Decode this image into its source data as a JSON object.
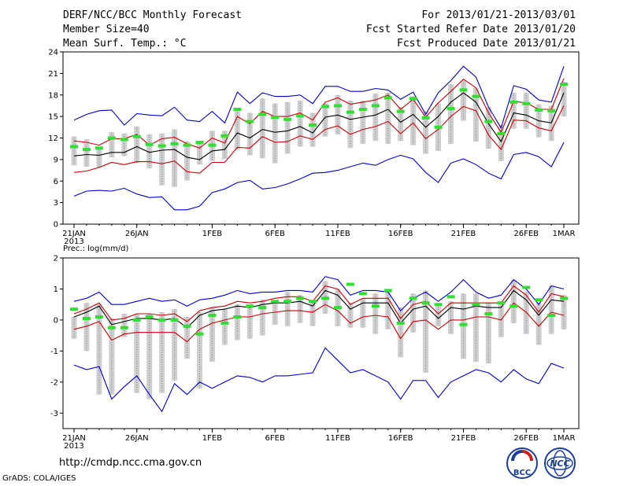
{
  "header": {
    "title": "DERF/NCC/BCC Monthly Forecast",
    "member_size": "Member Size=40",
    "variable": "Mean Surf. Temp.: °C",
    "period": "For 2013/01/21-2013/03/01",
    "started": "Fcst Started Refer Date 2013/01/20",
    "produced": "Fcst Produced Date 2013/01/21"
  },
  "footer": {
    "url": "http://cmdp.ncc.cma.gov.cn",
    "grads": "GrADS: COLA/IGES",
    "logo_left_text": "BCC",
    "logo_right_text": "NCC"
  },
  "colors": {
    "max_min": "#0000cc",
    "spread": "#cc0000",
    "mean": "#000000",
    "obs": "#33dd33",
    "box": "#cfcfd2",
    "whisker": "#808080"
  },
  "chart_data": [
    {
      "type": "line",
      "title": "Mean Surf. Temp.: °C",
      "x_labels": [
        "21JAN",
        "26JAN",
        "1FEB",
        "6FEB",
        "11FEB",
        "16FEB",
        "21FEB",
        "26FEB",
        "1MAR"
      ],
      "x_label_days": [
        0,
        5,
        11,
        16,
        21,
        26,
        31,
        36,
        39
      ],
      "year_label": "2013",
      "ylim": [
        0,
        24
      ],
      "y_ticks": [
        0,
        3,
        6,
        9,
        12,
        15,
        18,
        21,
        24
      ],
      "series": [
        {
          "name": "max",
          "values": [
            14.5,
            15.3,
            15.8,
            15.9,
            13.8,
            15.4,
            15.2,
            15.1,
            16.3,
            14.5,
            14.3,
            15.7,
            14.1,
            18.4,
            16.8,
            18.3,
            17.8,
            17.8,
            18.0,
            16.8,
            19.2,
            19.2,
            18.5,
            18.5,
            18.9,
            18.7,
            17.4,
            18.4,
            15.3,
            18.3,
            20.0,
            22.0,
            20.5,
            16.3,
            13.4,
            19.3,
            18.8,
            17.3,
            17.0,
            22.0
          ]
        },
        {
          "name": "upper",
          "values": [
            11.6,
            11.4,
            11.0,
            11.9,
            11.9,
            12.5,
            11.0,
            11.9,
            12.1,
            11.2,
            10.6,
            12.0,
            11.3,
            15.0,
            14.0,
            15.7,
            15.0,
            15.0,
            15.5,
            14.5,
            17.0,
            17.6,
            16.7,
            17.0,
            17.3,
            18.0,
            16.0,
            17.4,
            14.9,
            16.9,
            18.5,
            20.2,
            19.0,
            15.5,
            12.8,
            17.1,
            16.9,
            16.0,
            16.0,
            20.3
          ]
        },
        {
          "name": "mean",
          "values": [
            9.5,
            9.7,
            9.6,
            10.0,
            10.0,
            10.8,
            10.0,
            10.3,
            10.4,
            9.3,
            9.0,
            10.2,
            10.4,
            12.7,
            12.0,
            13.2,
            12.8,
            13.0,
            13.6,
            12.7,
            14.9,
            15.2,
            14.6,
            14.9,
            15.2,
            16.0,
            14.2,
            15.3,
            13.5,
            15.0,
            17.0,
            18.3,
            17.0,
            14.0,
            11.5,
            15.5,
            15.2,
            14.4,
            14.1,
            18.3
          ]
        },
        {
          "name": "lower",
          "values": [
            7.2,
            7.4,
            7.9,
            8.6,
            8.3,
            8.7,
            8.7,
            8.4,
            8.8,
            7.3,
            7.1,
            8.6,
            8.6,
            10.7,
            10.6,
            12.2,
            11.4,
            11.5,
            12.3,
            11.8,
            13.2,
            13.7,
            12.5,
            13.2,
            13.6,
            14.3,
            12.6,
            14.1,
            11.9,
            13.2,
            15.0,
            16.4,
            15.8,
            12.4,
            10.4,
            14.5,
            14.4,
            13.4,
            13.0,
            16.5
          ]
        },
        {
          "name": "min",
          "values": [
            3.9,
            4.6,
            4.7,
            4.6,
            5.0,
            4.2,
            3.7,
            3.8,
            2.0,
            2.0,
            2.5,
            4.4,
            4.9,
            5.8,
            6.1,
            4.9,
            5.1,
            5.6,
            6.3,
            7.1,
            7.2,
            7.5,
            8.0,
            8.5,
            8.2,
            9.0,
            9.6,
            9.1,
            7.2,
            5.8,
            8.5,
            9.1,
            8.3,
            7.1,
            6.3,
            9.7,
            10.0,
            9.4,
            8.0,
            11.4
          ]
        },
        {
          "name": "obs",
          "values": [
            10.8,
            10.4,
            10.6,
            12.0,
            11.8,
            12.2,
            11.1,
            10.9,
            11.2,
            11.0,
            11.4,
            11.0,
            12.3,
            16.0,
            14.3,
            15.3,
            14.9,
            14.6,
            15.1,
            13.8,
            16.4,
            16.5,
            15.6,
            16.0,
            16.5,
            17.6,
            15.7,
            17.5,
            14.8,
            13.5,
            16.1,
            18.7,
            17.8,
            14.3,
            12.6,
            17.0,
            16.8,
            15.9,
            15.8,
            19.5
          ]
        },
        {
          "name": "box_hi",
          "values": [
            12.2,
            11.8,
            10.7,
            12.8,
            12.6,
            13.6,
            12.5,
            12.6,
            13.2,
            11.5,
            11.5,
            13.0,
            13.0,
            15.9,
            15.5,
            17.5,
            16.8,
            17.0,
            17.2,
            15.5,
            16.8,
            18.0,
            17.2,
            17.2,
            18.2,
            18.3,
            16.3,
            17.8,
            15.7,
            16.8,
            19.5,
            20.0,
            19.0,
            16.3,
            13.8,
            18.3,
            18.3,
            16.7,
            16.5,
            19.8
          ]
        },
        {
          "name": "box_lo",
          "values": [
            8.2,
            8.0,
            7.9,
            9.3,
            9.5,
            8.5,
            7.8,
            5.4,
            5.2,
            6.1,
            8.3,
            8.8,
            9.1,
            10.4,
            9.6,
            9.2,
            8.5,
            9.8,
            10.8,
            10.8,
            12.2,
            12.5,
            10.6,
            11.2,
            11.6,
            11.2,
            11.6,
            11.0,
            9.8,
            10.2,
            11.2,
            14.4,
            11.5,
            10.5,
            8.8,
            13.3,
            13.3,
            12.1,
            11.6,
            15.0
          ]
        }
      ]
    },
    {
      "type": "line",
      "title": "Prec.: log(mm/d)",
      "x_labels": [
        "21JAN",
        "26JAN",
        "1FEB",
        "6FEB",
        "11FEB",
        "16FEB",
        "21FEB",
        "26FEB",
        "1MAR"
      ],
      "x_label_days": [
        0,
        5,
        11,
        16,
        21,
        26,
        31,
        36,
        39
      ],
      "year_label": "2013",
      "ylim": [
        -3.5,
        2
      ],
      "y_ticks": [
        -3,
        -2,
        -1,
        0,
        1,
        2
      ],
      "series": [
        {
          "name": "max",
          "values": [
            0.6,
            0.7,
            0.9,
            0.5,
            0.5,
            0.6,
            0.7,
            0.6,
            0.65,
            0.45,
            0.65,
            0.7,
            0.8,
            0.95,
            0.85,
            0.9,
            0.9,
            0.95,
            0.95,
            0.9,
            1.4,
            1.3,
            0.8,
            0.95,
            0.95,
            0.9,
            0.3,
            0.7,
            0.9,
            0.6,
            0.9,
            1.3,
            0.9,
            0.7,
            0.8,
            1.3,
            1.0,
            0.5,
            1.1,
            1.0
          ]
        },
        {
          "name": "upper",
          "values": [
            0.2,
            0.35,
            0.55,
            0.0,
            0.05,
            0.2,
            0.2,
            0.15,
            0.2,
            -0.05,
            0.3,
            0.4,
            0.45,
            0.6,
            0.55,
            0.6,
            0.7,
            0.75,
            0.75,
            0.6,
            1.1,
            1.0,
            0.5,
            0.7,
            0.7,
            0.7,
            0.05,
            0.5,
            0.6,
            0.2,
            0.55,
            0.55,
            0.55,
            0.55,
            0.55,
            1.1,
            0.8,
            0.25,
            0.85,
            0.75
          ]
        },
        {
          "name": "mean",
          "values": [
            0.1,
            0.25,
            0.45,
            -0.15,
            -0.05,
            0.05,
            0.05,
            0.0,
            0.05,
            -0.25,
            0.15,
            0.3,
            0.35,
            0.45,
            0.4,
            0.5,
            0.55,
            0.55,
            0.6,
            0.45,
            0.95,
            0.8,
            0.35,
            0.55,
            0.55,
            0.55,
            -0.1,
            0.35,
            0.45,
            0.05,
            0.4,
            0.35,
            0.45,
            0.4,
            0.4,
            0.95,
            0.65,
            0.15,
            0.65,
            0.6
          ]
        },
        {
          "name": "lower",
          "values": [
            -0.3,
            -0.2,
            -0.05,
            -0.65,
            -0.45,
            -0.4,
            -0.4,
            -0.4,
            -0.4,
            -0.7,
            -0.3,
            -0.1,
            0.0,
            0.1,
            0.1,
            0.2,
            0.25,
            0.3,
            0.3,
            0.25,
            0.5,
            0.3,
            -0.1,
            0.1,
            0.15,
            0.1,
            -0.6,
            -0.05,
            0.0,
            -0.3,
            0.0,
            0.0,
            0.1,
            0.1,
            0.0,
            0.55,
            0.25,
            -0.2,
            0.25,
            0.15
          ]
        },
        {
          "name": "min",
          "values": [
            -1.45,
            -1.6,
            -1.5,
            -2.55,
            -2.15,
            -1.8,
            -2.4,
            -2.95,
            -2.05,
            -2.4,
            -2.0,
            -2.2,
            -2.0,
            -1.8,
            -1.85,
            -2.0,
            -1.8,
            -1.8,
            -1.75,
            -1.7,
            -0.9,
            -1.3,
            -1.7,
            -1.6,
            -1.8,
            -2.0,
            -2.55,
            -1.95,
            -1.95,
            -2.5,
            -2.0,
            -1.8,
            -1.6,
            -1.7,
            -2.0,
            -1.6,
            -1.9,
            -2.05,
            -1.4,
            -1.55
          ]
        },
        {
          "name": "obs",
          "values": [
            0.35,
            0.05,
            0.1,
            -0.25,
            -0.25,
            0.0,
            0.1,
            0.0,
            0.0,
            -0.2,
            -0.45,
            0.15,
            -0.1,
            0.1,
            0.45,
            0.4,
            0.6,
            0.6,
            0.7,
            0.6,
            0.7,
            0.4,
            1.15,
            0.85,
            0.45,
            0.95,
            -0.1,
            0.7,
            0.55,
            0.5,
            0.75,
            -0.15,
            0.5,
            0.2,
            0.55,
            0.45,
            1.05,
            0.65,
            0.15,
            0.7
          ]
        },
        {
          "name": "box_hi",
          "values": [
            0.1,
            0.55,
            0.5,
            0.05,
            0.2,
            0.2,
            0.2,
            0.25,
            0.35,
            0.1,
            0.25,
            0.4,
            0.35,
            0.5,
            0.5,
            0.65,
            0.55,
            0.9,
            0.8,
            0.55,
            1.25,
            1.0,
            0.55,
            0.7,
            0.85,
            0.9,
            0.4,
            0.85,
            0.95,
            0.5,
            0.6,
            0.85,
            0.85,
            0.55,
            0.6,
            1.3,
            0.9,
            0.55,
            1.1,
            0.8
          ]
        },
        {
          "name": "box_lo",
          "values": [
            -0.6,
            -1.0,
            -2.4,
            -2.4,
            -0.55,
            -2.35,
            -2.55,
            -2.35,
            -1.95,
            -1.25,
            -2.2,
            -1.35,
            -0.8,
            -0.65,
            -0.6,
            -0.5,
            -0.15,
            -0.2,
            -0.1,
            -0.2,
            0.2,
            -0.2,
            -0.25,
            -0.25,
            -0.45,
            -0.3,
            -1.2,
            -0.4,
            -1.7,
            -0.2,
            -0.45,
            -1.25,
            -1.35,
            -1.4,
            -0.55,
            -0.1,
            -0.45,
            -0.8,
            -0.45,
            -0.3
          ]
        }
      ]
    }
  ]
}
